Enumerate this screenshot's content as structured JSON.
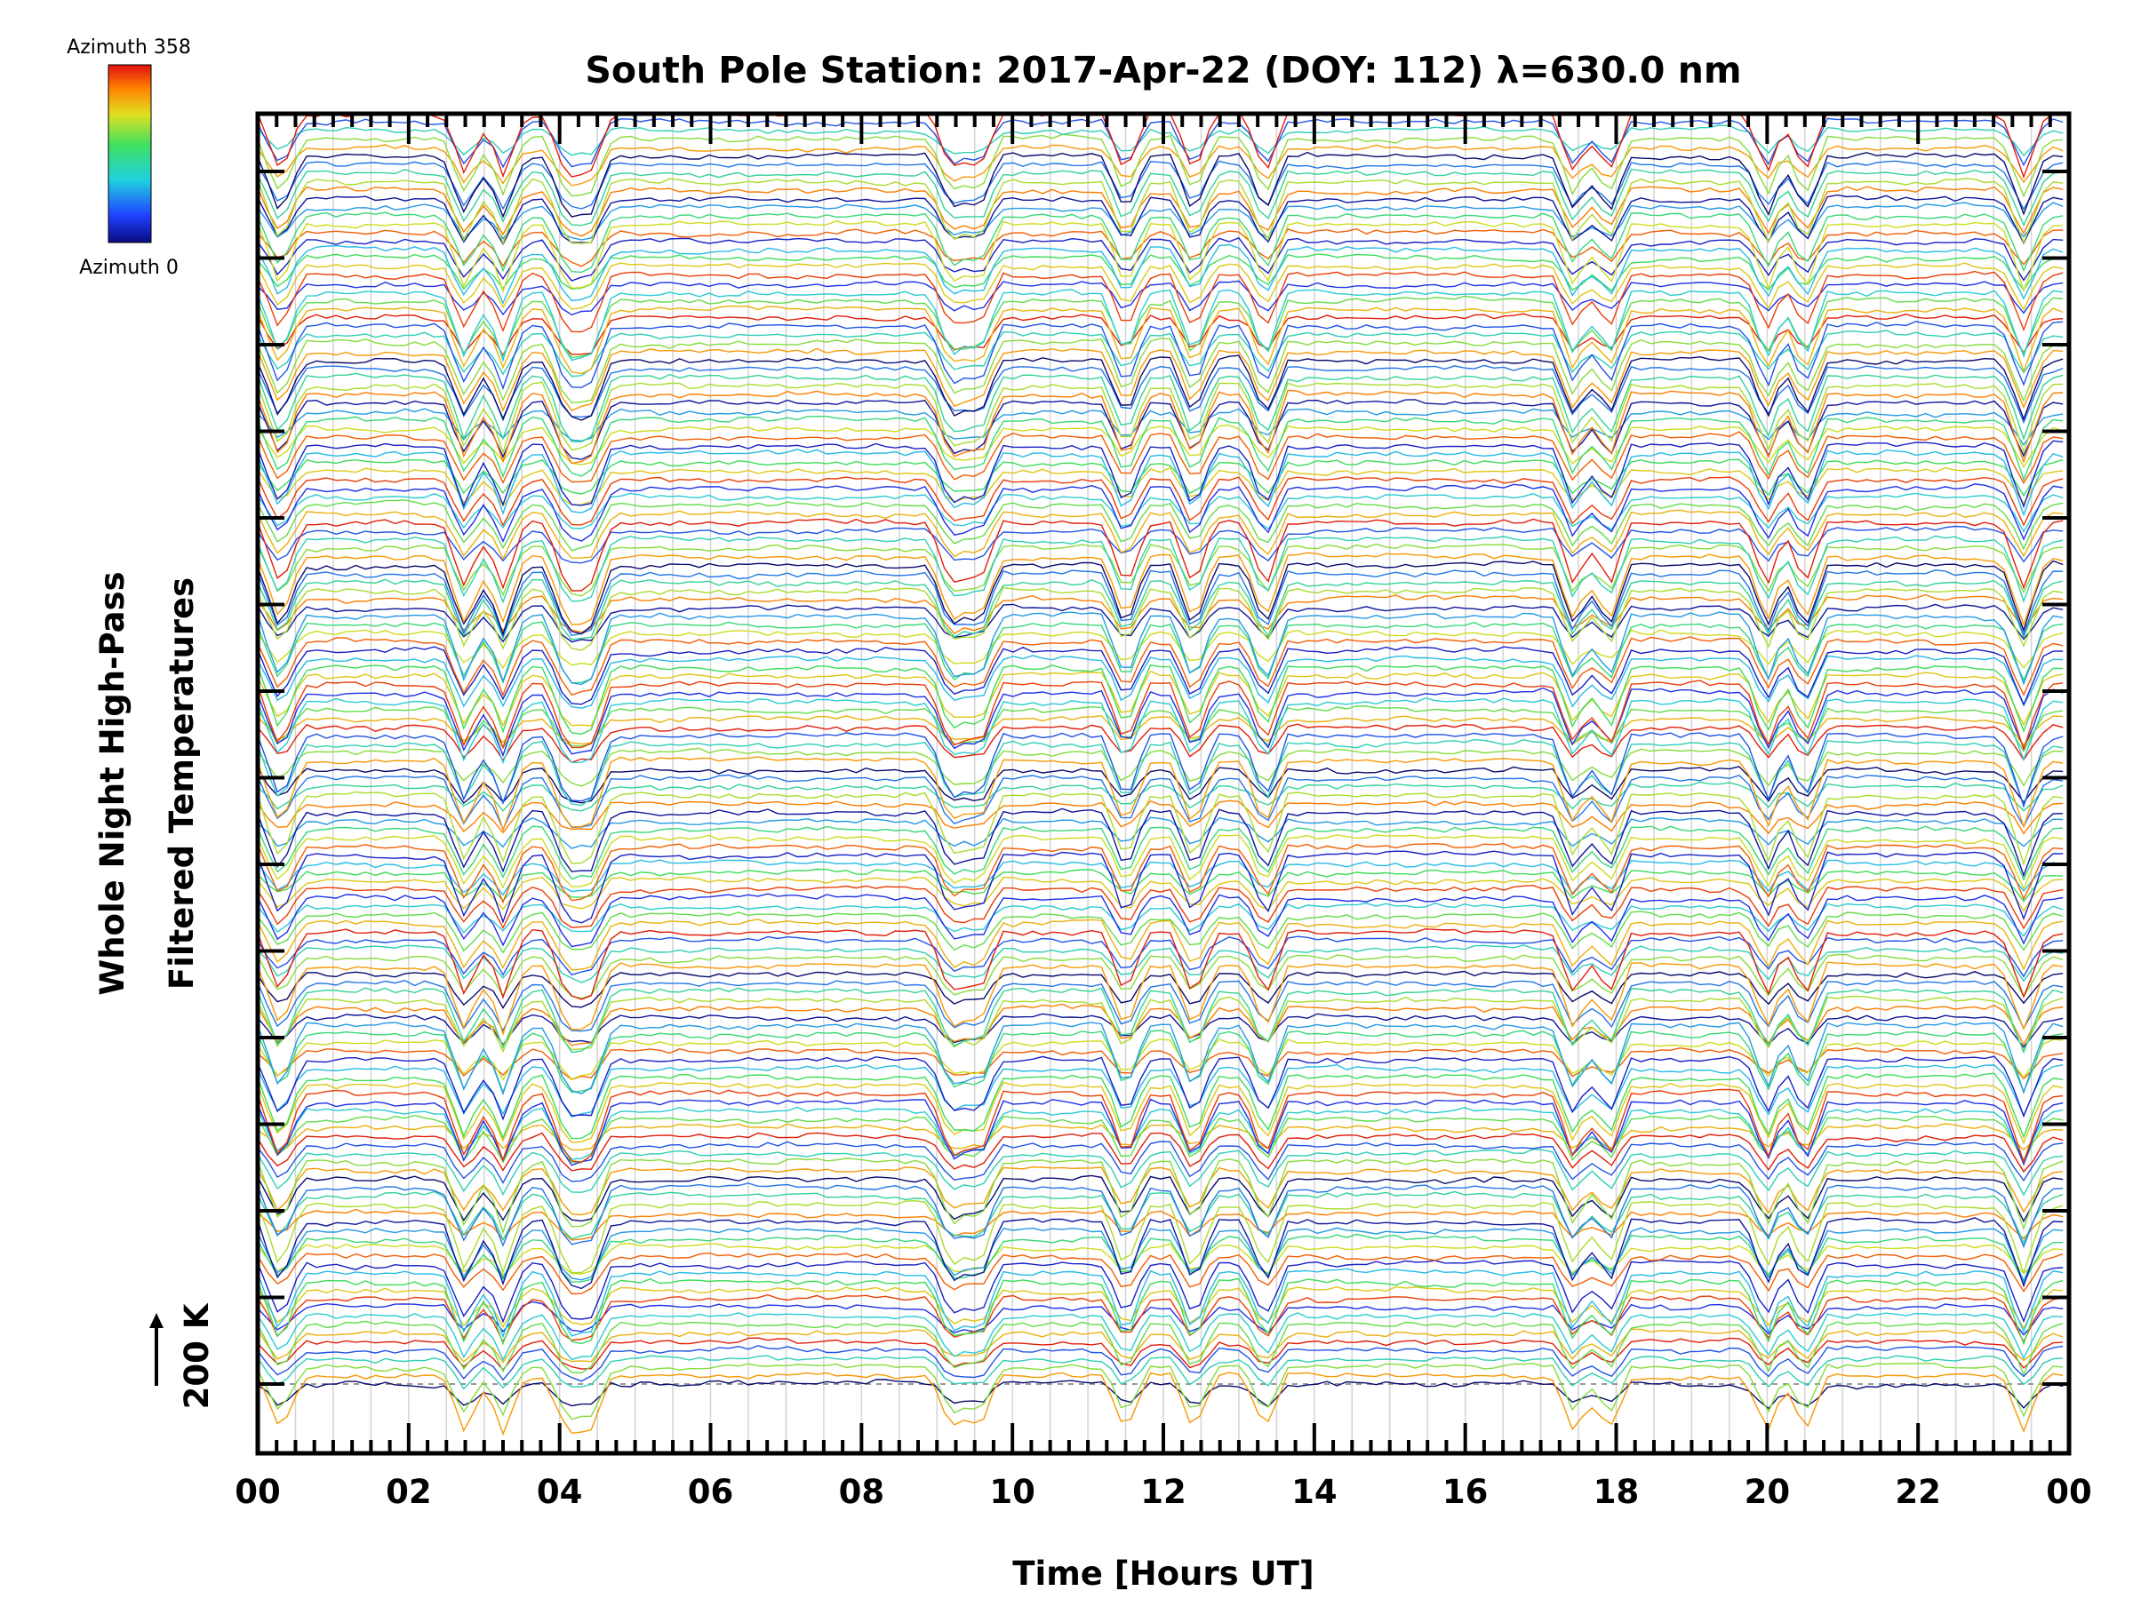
{
  "chart_data": {
    "type": "line",
    "title": "South Pole Station: 2017-Apr-22 (DOY: 112) λ=630.0 nm",
    "xlabel": "Time [Hours UT]",
    "ylabel_line1": "Whole Night High-Pass",
    "ylabel_line2": "Filtered Temperatures",
    "scale_label": "200 K",
    "x_tick_labels": [
      "00",
      "02",
      "04",
      "06",
      "08",
      "10",
      "12",
      "14",
      "16",
      "18",
      "20",
      "22",
      "00"
    ],
    "xlim_hours": [
      0,
      24
    ],
    "colorbar": {
      "top_label": "Azimuth 358",
      "bottom_label": "Azimuth 0",
      "colormap": "rainbow (blue-cyan-green-yellow-red)",
      "range": [
        0,
        358
      ]
    },
    "n_series_approx": 150,
    "grouping": "stacked traces in azimuth-cycle bands, each trace offset vertically",
    "common_dip_hours": [
      0.3,
      2.75,
      3.25,
      4.1,
      4.4,
      9.2,
      9.55,
      11.5,
      12.4,
      13.35,
      17.45,
      17.9,
      20.0,
      20.5,
      23.4
    ]
  },
  "colors": {
    "background": "#ffffff",
    "axes": "#000000",
    "grid": "#cccccc",
    "reference_line": "#999999"
  }
}
